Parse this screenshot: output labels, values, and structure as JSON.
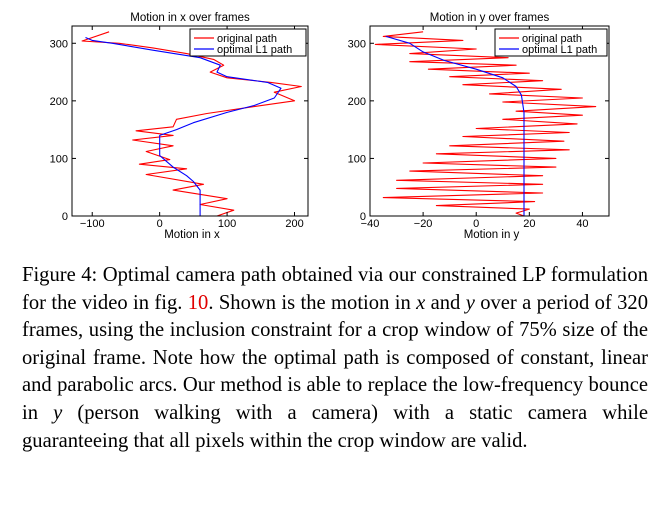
{
  "chart_data": [
    {
      "type": "line",
      "title": "Motion in x over frames",
      "xlabel": "Motion in x",
      "ylabel": "",
      "xlim": [
        -130,
        220
      ],
      "ylim": [
        0,
        330
      ],
      "xticks": [
        -100,
        0,
        100,
        200
      ],
      "yticks": [
        0,
        100,
        200,
        300
      ],
      "legend": "top-right",
      "series": [
        {
          "name": "original path",
          "color": "#ff0000",
          "points": [
            [
              -75,
              320
            ],
            [
              -115,
              304
            ],
            [
              -60,
              300
            ],
            [
              -10,
              292
            ],
            [
              40,
              282
            ],
            [
              80,
              272
            ],
            [
              95,
              262
            ],
            [
              75,
              250
            ],
            [
              100,
              240
            ],
            [
              165,
              232
            ],
            [
              210,
              225
            ],
            [
              170,
              215
            ],
            [
              200,
              200
            ],
            [
              140,
              190
            ],
            [
              70,
              178
            ],
            [
              25,
              168
            ],
            [
              20,
              155
            ],
            [
              -35,
              148
            ],
            [
              20,
              140
            ],
            [
              -40,
              132
            ],
            [
              20,
              122
            ],
            [
              -20,
              112
            ],
            [
              15,
              98
            ],
            [
              -30,
              90
            ],
            [
              40,
              82
            ],
            [
              -20,
              72
            ],
            [
              65,
              55
            ],
            [
              20,
              45
            ],
            [
              100,
              30
            ],
            [
              60,
              20
            ],
            [
              110,
              10
            ],
            [
              85,
              0
            ]
          ]
        },
        {
          "name": "optimal L1 path",
          "color": "#0000ff",
          "points": [
            [
              -110,
              310
            ],
            [
              -100,
              305
            ],
            [
              -70,
              300
            ],
            [
              -10,
              288
            ],
            [
              60,
              275
            ],
            [
              90,
              262
            ],
            [
              85,
              250
            ],
            [
              100,
              242
            ],
            [
              160,
              232
            ],
            [
              180,
              222
            ],
            [
              170,
              205
            ],
            [
              140,
              192
            ],
            [
              100,
              180
            ],
            [
              50,
              162
            ],
            [
              25,
              150
            ],
            [
              0,
              140
            ],
            [
              0,
              120
            ],
            [
              0,
              105
            ],
            [
              10,
              95
            ],
            [
              20,
              85
            ],
            [
              40,
              70
            ],
            [
              50,
              60
            ],
            [
              60,
              45
            ],
            [
              60,
              0
            ]
          ]
        }
      ]
    },
    {
      "type": "line",
      "title": "Motion in y over frames",
      "xlabel": "Motion in y",
      "ylabel": "",
      "xlim": [
        -40,
        50
      ],
      "ylim": [
        0,
        330
      ],
      "xticks": [
        -40,
        -20,
        0,
        20,
        40
      ],
      "yticks": [
        0,
        100,
        200,
        300
      ],
      "legend": "top-right",
      "series": [
        {
          "name": "original path",
          "color": "#ff0000",
          "points": [
            [
              -20,
              320
            ],
            [
              -35,
              312
            ],
            [
              -5,
              305
            ],
            [
              -38,
              298
            ],
            [
              0,
              290
            ],
            [
              -25,
              282
            ],
            [
              12,
              275
            ],
            [
              -25,
              268
            ],
            [
              15,
              262
            ],
            [
              -18,
              255
            ],
            [
              20,
              248
            ],
            [
              -10,
              242
            ],
            [
              25,
              235
            ],
            [
              -5,
              228
            ],
            [
              32,
              220
            ],
            [
              5,
              212
            ],
            [
              40,
              205
            ],
            [
              10,
              198
            ],
            [
              45,
              190
            ],
            [
              15,
              182
            ],
            [
              40,
              175
            ],
            [
              10,
              168
            ],
            [
              38,
              160
            ],
            [
              0,
              152
            ],
            [
              35,
              145
            ],
            [
              -5,
              138
            ],
            [
              33,
              130
            ],
            [
              -10,
              122
            ],
            [
              35,
              115
            ],
            [
              -15,
              108
            ],
            [
              30,
              100
            ],
            [
              -20,
              92
            ],
            [
              30,
              85
            ],
            [
              -25,
              78
            ],
            [
              25,
              70
            ],
            [
              -30,
              62
            ],
            [
              25,
              55
            ],
            [
              -30,
              48
            ],
            [
              25,
              40
            ],
            [
              -35,
              32
            ],
            [
              22,
              25
            ],
            [
              -15,
              18
            ],
            [
              20,
              12
            ],
            [
              15,
              5
            ],
            [
              18,
              0
            ]
          ]
        },
        {
          "name": "optimal L1 path",
          "color": "#0000ff",
          "points": [
            [
              -34,
              312
            ],
            [
              -25,
              300
            ],
            [
              -20,
              285
            ],
            [
              -12,
              270
            ],
            [
              0,
              255
            ],
            [
              10,
              240
            ],
            [
              15,
              225
            ],
            [
              17,
              210
            ],
            [
              18,
              180
            ],
            [
              18,
              140
            ],
            [
              18,
              100
            ],
            [
              18,
              60
            ],
            [
              18,
              0
            ]
          ]
        }
      ]
    }
  ],
  "caption": {
    "part1": "Figure 4: Optimal camera path obtained via our constrained LP formulation for the video in fig. ",
    "ref": "10",
    "part2": ". Shown is the motion in ",
    "var_x": "x",
    "part3": " and ",
    "var_y1": "y",
    "part4": " over a period of 320 frames, using the inclusion constraint for a crop window of 75% size of the original frame. Note how the optimal path is composed of constant, linear and parabolic arcs. Our method is able to replace the low-frequency bounce in ",
    "var_y2": "y",
    "part5": " (person walking with a camera) with a static camera while guaranteeing that all pixels within the crop window are valid."
  }
}
